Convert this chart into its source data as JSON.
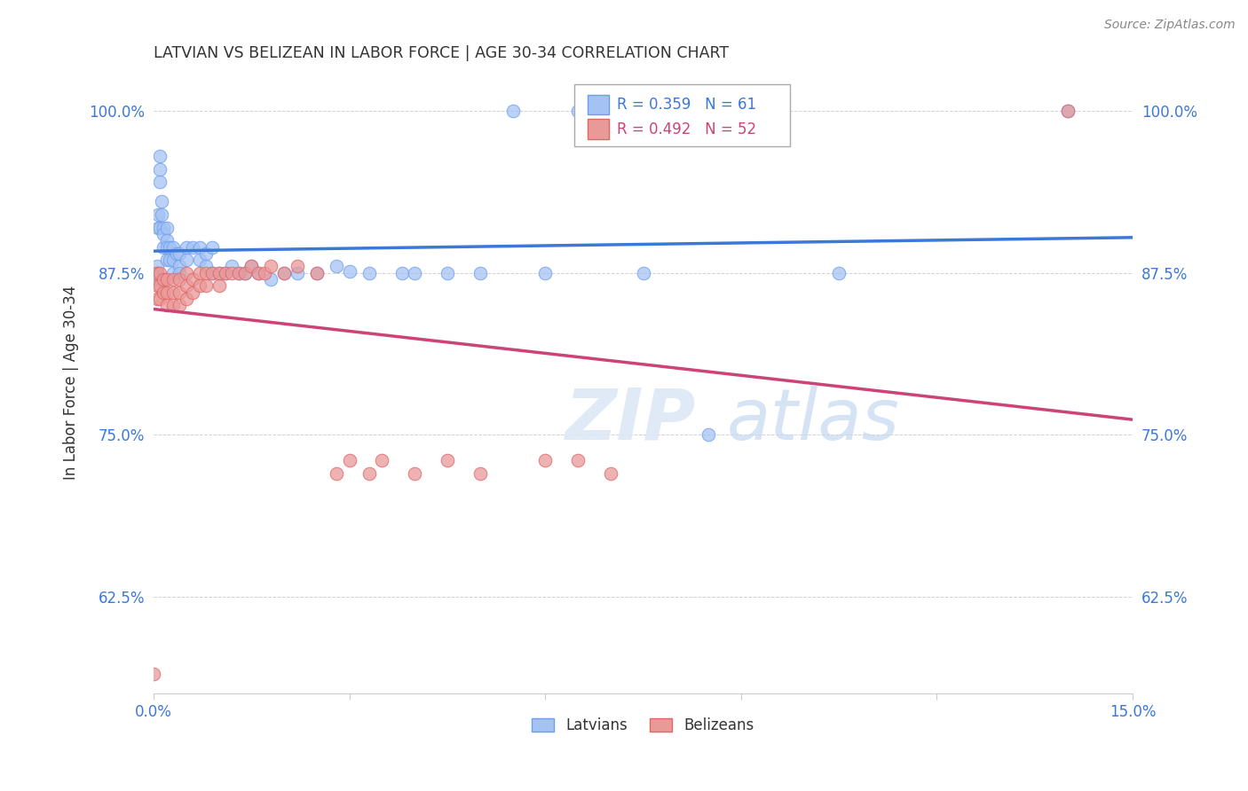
{
  "title": "LATVIAN VS BELIZEAN IN LABOR FORCE | AGE 30-34 CORRELATION CHART",
  "source": "Source: ZipAtlas.com",
  "ylabel": "In Labor Force | Age 30-34",
  "xlim": [
    0.0,
    0.15
  ],
  "ylim": [
    0.55,
    1.03
  ],
  "yticks": [
    0.625,
    0.75,
    0.875,
    1.0
  ],
  "ytick_labels": [
    "62.5%",
    "75.0%",
    "87.5%",
    "100.0%"
  ],
  "xticks": [
    0.0,
    0.03,
    0.06,
    0.09,
    0.12,
    0.15
  ],
  "xtick_labels": [
    "0.0%",
    "",
    "",
    "",
    "",
    "15.0%"
  ],
  "latvian_R": 0.359,
  "latvian_N": 61,
  "belizean_R": 0.492,
  "belizean_N": 52,
  "latvian_color": "#a4c2f4",
  "belizean_color": "#ea9999",
  "latvian_edge_color": "#6d9eeb",
  "belizean_edge_color": "#e06666",
  "latvian_line_color": "#3c78d8",
  "belizean_line_color": "#cc4477",
  "legend_label_latvian": "Latvians",
  "legend_label_belizean": "Belizeans",
  "latvian_x": [
    0.0005,
    0.0005,
    0.0005,
    0.0007,
    0.0007,
    0.001,
    0.001,
    0.001,
    0.001,
    0.0012,
    0.0012,
    0.0015,
    0.0015,
    0.0015,
    0.002,
    0.002,
    0.002,
    0.002,
    0.0025,
    0.0025,
    0.003,
    0.003,
    0.003,
    0.0035,
    0.004,
    0.004,
    0.004,
    0.005,
    0.005,
    0.006,
    0.007,
    0.007,
    0.008,
    0.008,
    0.009,
    0.009,
    0.01,
    0.011,
    0.012,
    0.013,
    0.014,
    0.015,
    0.016,
    0.018,
    0.02,
    0.022,
    0.025,
    0.028,
    0.03,
    0.033,
    0.038,
    0.04,
    0.045,
    0.05,
    0.055,
    0.06,
    0.065,
    0.075,
    0.085,
    0.105,
    0.14
  ],
  "latvian_y": [
    0.88,
    0.875,
    0.87,
    0.92,
    0.91,
    0.965,
    0.955,
    0.945,
    0.91,
    0.93,
    0.92,
    0.91,
    0.905,
    0.895,
    0.91,
    0.9,
    0.895,
    0.885,
    0.895,
    0.885,
    0.895,
    0.885,
    0.875,
    0.89,
    0.89,
    0.88,
    0.875,
    0.895,
    0.885,
    0.895,
    0.895,
    0.885,
    0.89,
    0.88,
    0.895,
    0.875,
    0.875,
    0.875,
    0.88,
    0.875,
    0.875,
    0.88,
    0.875,
    0.87,
    0.875,
    0.875,
    0.875,
    0.88,
    0.876,
    0.875,
    0.875,
    0.875,
    0.875,
    0.875,
    1.0,
    0.875,
    1.0,
    0.875,
    0.75,
    0.875,
    1.0
  ],
  "belizean_x": [
    0.0,
    0.0005,
    0.0005,
    0.0005,
    0.001,
    0.001,
    0.001,
    0.0015,
    0.0015,
    0.002,
    0.002,
    0.002,
    0.003,
    0.003,
    0.003,
    0.004,
    0.004,
    0.004,
    0.005,
    0.005,
    0.005,
    0.006,
    0.006,
    0.007,
    0.007,
    0.008,
    0.008,
    0.009,
    0.01,
    0.01,
    0.011,
    0.012,
    0.013,
    0.014,
    0.015,
    0.016,
    0.017,
    0.018,
    0.02,
    0.022,
    0.025,
    0.028,
    0.03,
    0.033,
    0.035,
    0.04,
    0.045,
    0.05,
    0.06,
    0.065,
    0.07,
    0.14
  ],
  "belizean_y": [
    0.565,
    0.875,
    0.865,
    0.855,
    0.875,
    0.865,
    0.855,
    0.87,
    0.86,
    0.87,
    0.86,
    0.85,
    0.87,
    0.86,
    0.85,
    0.87,
    0.86,
    0.85,
    0.875,
    0.865,
    0.855,
    0.87,
    0.86,
    0.875,
    0.865,
    0.875,
    0.865,
    0.875,
    0.875,
    0.865,
    0.875,
    0.875,
    0.875,
    0.875,
    0.88,
    0.875,
    0.875,
    0.88,
    0.875,
    0.88,
    0.875,
    0.72,
    0.73,
    0.72,
    0.73,
    0.72,
    0.73,
    0.72,
    0.73,
    0.73,
    0.72,
    1.0
  ]
}
